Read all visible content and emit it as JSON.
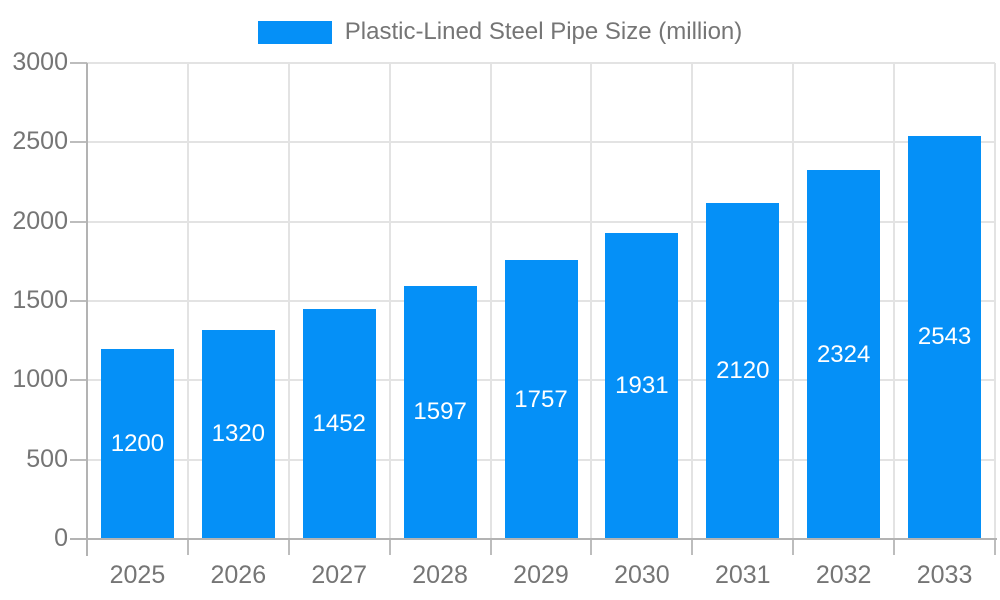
{
  "chart_data": {
    "type": "bar",
    "title": "Plastic-Lined Steel Pipe Size (million)",
    "legend_position": "top",
    "categories": [
      "2025",
      "2026",
      "2027",
      "2028",
      "2029",
      "2030",
      "2031",
      "2032",
      "2033"
    ],
    "values": [
      1200,
      1320,
      1452,
      1597,
      1757,
      1931,
      2120,
      2324,
      2543
    ],
    "yticks": [
      0,
      500,
      1000,
      1500,
      2000,
      2500,
      3000
    ],
    "ylim": [
      0,
      3000
    ],
    "xlabel": "",
    "ylabel": "",
    "grid": true,
    "colors": {
      "bar": "#0590f7",
      "value_label_text": "#ffffff",
      "axis_text": "#757575",
      "gridline": "#e3e3e3",
      "axis_line": "#b3b3b3",
      "tick": "#bdbdbd"
    }
  }
}
